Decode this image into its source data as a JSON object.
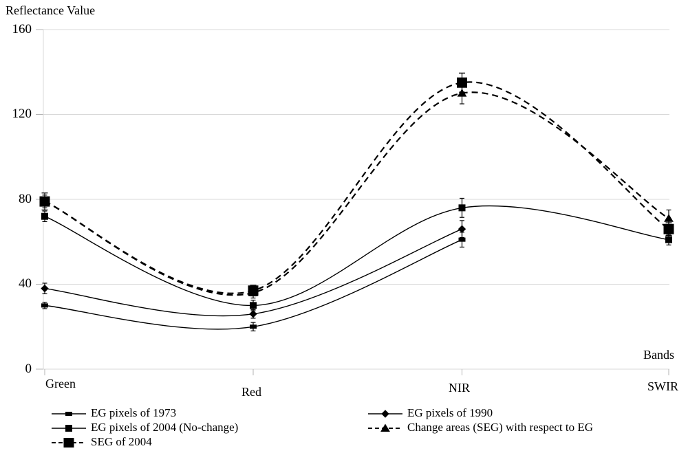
{
  "chart_data": {
    "type": "line",
    "title": "Reflectance Value",
    "xlabel": "Bands",
    "ylabel": "Reflectance Value",
    "categories": [
      "Green",
      "Red",
      "NIR",
      "SWIR"
    ],
    "ylim": [
      0,
      160
    ],
    "yticks": [
      160,
      120,
      80,
      40,
      0
    ],
    "grid": "horizontal",
    "legend_position": "bottom",
    "error_bars": true,
    "line_color": "#000000",
    "series": [
      {
        "name": "EG pixels of 1973",
        "line": "solid",
        "marker": "dash-square",
        "values": [
          30,
          20,
          61,
          null
        ],
        "errors": [
          1.5,
          2,
          3.5,
          null
        ]
      },
      {
        "name": "EG pixels of 1990",
        "line": "solid",
        "marker": "diamond",
        "values": [
          38,
          26,
          66,
          null
        ],
        "errors": [
          2.5,
          2,
          4,
          null
        ]
      },
      {
        "name": "EG pixels of 2004 (No-change)",
        "line": "solid",
        "marker": "square",
        "values": [
          72,
          30,
          76,
          61
        ],
        "errors": [
          2.5,
          2.5,
          4.5,
          2.5
        ]
      },
      {
        "name": "Change areas (SEG) with respect to EG",
        "line": "dashed",
        "marker": "triangle",
        "values": [
          79,
          36,
          130,
          71
        ],
        "errors": [
          3,
          2.5,
          5,
          4
        ]
      },
      {
        "name": "SEG of 2004",
        "line": "dashed",
        "marker": "large-square",
        "values": [
          79,
          37,
          135,
          66
        ],
        "errors": [
          4,
          2.5,
          4.5,
          3
        ]
      }
    ]
  }
}
